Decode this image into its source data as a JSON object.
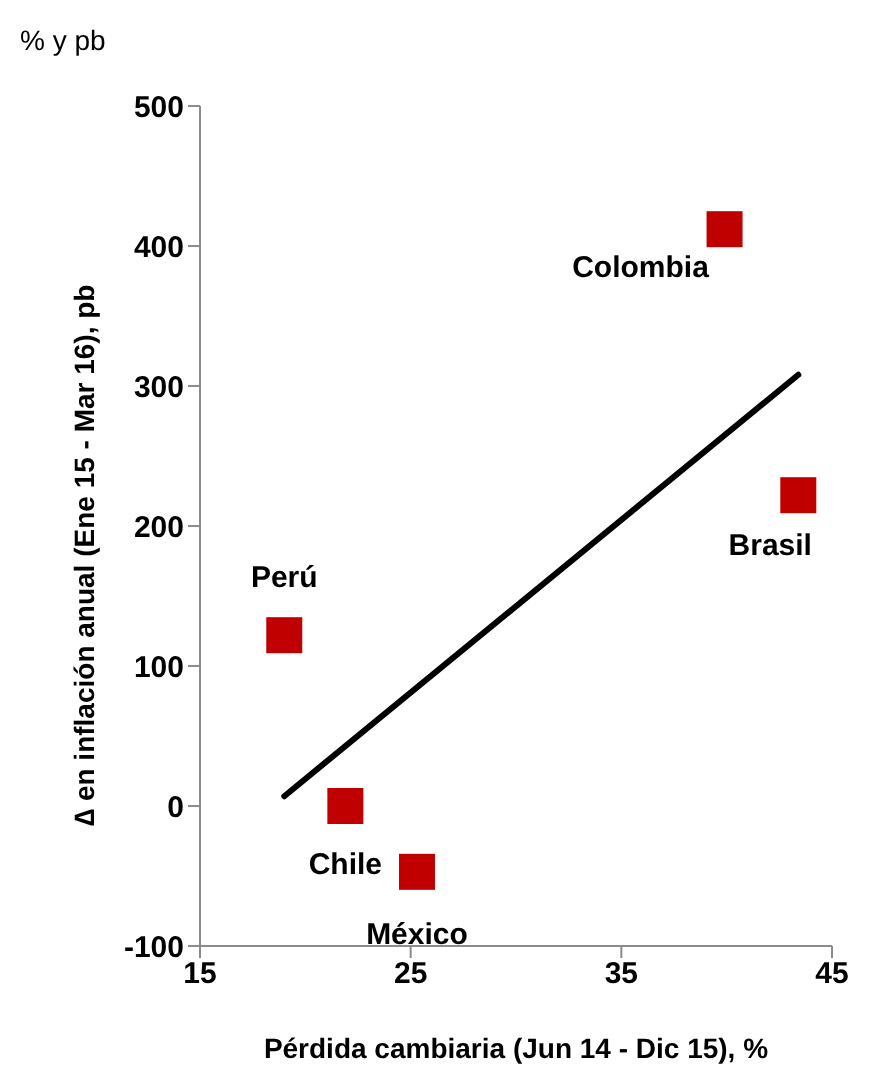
{
  "chart_data": {
    "type": "scatter",
    "subtitle": "% y pb",
    "xlabel": "Pérdida cambiaria (Jun 14 - Dic 15), %",
    "ylabel": "∆ en inflación anual (Ene 15 - Mar 16), pb",
    "xlim": [
      15,
      45
    ],
    "xticks": [
      15,
      25,
      35,
      45
    ],
    "ylim": [
      -100,
      500
    ],
    "yticks": [
      -100,
      0,
      100,
      200,
      300,
      400,
      500
    ],
    "grid": false,
    "legend": false,
    "marker": "square",
    "series": [
      {
        "color": "#c00000",
        "x": [
          19,
          21.9,
          25.3,
          39.9,
          43.4
        ],
        "values": [
          122,
          0,
          -47,
          412,
          222
        ]
      },
      {
        "type": "line",
        "marker": "none",
        "color": "#000000",
        "x": [
          19,
          43.4
        ],
        "values": [
          7,
          308
        ]
      }
    ],
    "annotations": [
      {
        "text": "Perú",
        "x": 19,
        "y": 122
      },
      {
        "text": "Chile",
        "x": 21.9,
        "y": 0
      },
      {
        "text": "México",
        "x": 25.3,
        "y": -47
      },
      {
        "text": "Colombia",
        "x": 39.9,
        "y": 412
      },
      {
        "text": "Brasil",
        "x": 43.4,
        "y": 222
      }
    ]
  }
}
